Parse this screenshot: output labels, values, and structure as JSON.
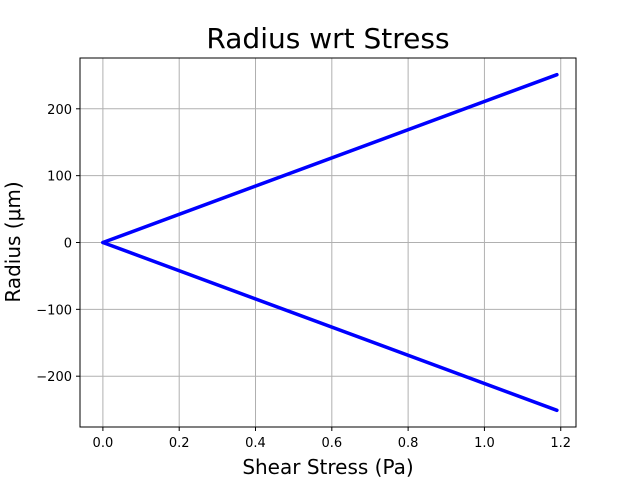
{
  "chart_data": {
    "type": "line",
    "title": "Radius wrt Stress",
    "xlabel": "Shear Stress (Pa)",
    "ylabel": "Radius (μm)",
    "xlim": [
      -0.06,
      1.24
    ],
    "ylim": [
      -276,
      276
    ],
    "grid": true,
    "xticks": [
      0.0,
      0.2,
      0.4,
      0.6,
      0.8,
      1.0,
      1.2
    ],
    "xtick_labels": [
      "0.0",
      "0.2",
      "0.4",
      "0.6",
      "0.8",
      "1.0",
      "1.2"
    ],
    "yticks": [
      -200,
      -100,
      0,
      100,
      200
    ],
    "ytick_labels": [
      "−200",
      "−100",
      "0",
      "100",
      "200"
    ],
    "series": [
      {
        "color": "#0000ff",
        "x": [
          0.0,
          1.19
        ],
        "y": [
          0,
          251
        ]
      },
      {
        "color": "#0000ff",
        "x": [
          0.0,
          1.19
        ],
        "y": [
          0,
          -251
        ]
      }
    ]
  }
}
